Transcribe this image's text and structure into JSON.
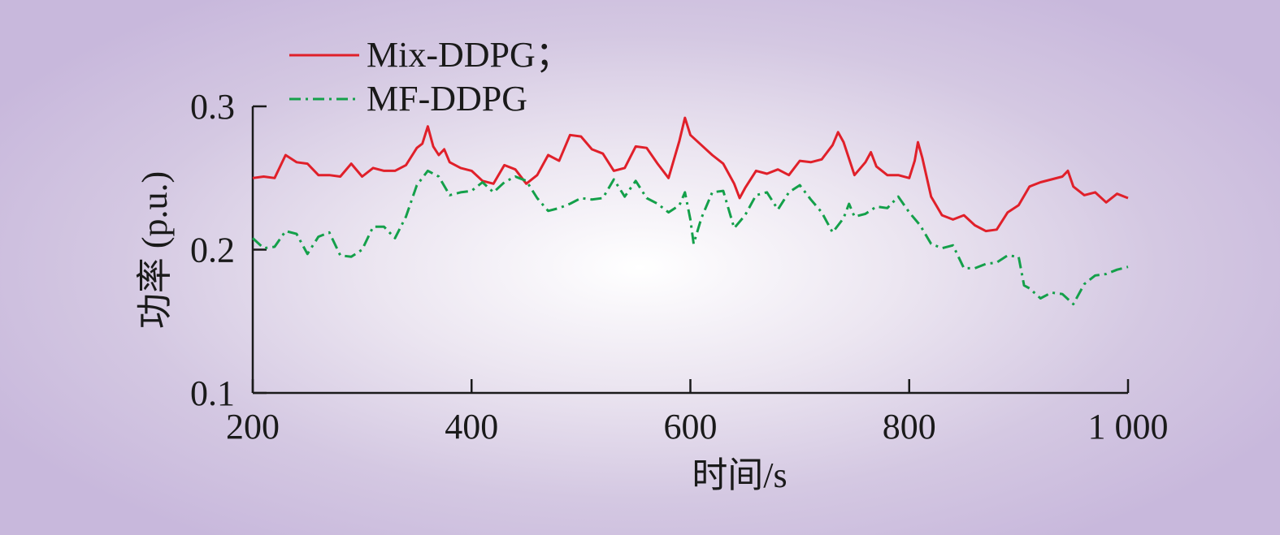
{
  "chart_data": {
    "type": "line",
    "xlabel": "时间/s",
    "ylabel": "功率 (p.u.)",
    "xlim": [
      200,
      1000
    ],
    "ylim": [
      0.1,
      0.3
    ],
    "x_ticks": [
      200,
      400,
      600,
      800,
      1000
    ],
    "x_tick_labels": [
      "200",
      "400",
      "600",
      "800",
      "1 000"
    ],
    "y_ticks": [
      0.1,
      0.2,
      0.3
    ],
    "y_tick_labels": [
      "0.1",
      "0.2",
      "0.3"
    ],
    "grid": false,
    "legend_position": "top-left",
    "series": [
      {
        "name": "Mix-DDPG；",
        "color": "#e0202a",
        "style": "solid",
        "points": [
          [
            200,
            0.25
          ],
          [
            210,
            0.251
          ],
          [
            220,
            0.25
          ],
          [
            230,
            0.266
          ],
          [
            240,
            0.261
          ],
          [
            250,
            0.26
          ],
          [
            260,
            0.252
          ],
          [
            270,
            0.252
          ],
          [
            280,
            0.251
          ],
          [
            290,
            0.26
          ],
          [
            300,
            0.251
          ],
          [
            310,
            0.257
          ],
          [
            320,
            0.255
          ],
          [
            330,
            0.255
          ],
          [
            340,
            0.259
          ],
          [
            350,
            0.271
          ],
          [
            355,
            0.274
          ],
          [
            360,
            0.286
          ],
          [
            365,
            0.272
          ],
          [
            370,
            0.266
          ],
          [
            375,
            0.27
          ],
          [
            380,
            0.261
          ],
          [
            390,
            0.257
          ],
          [
            400,
            0.255
          ],
          [
            410,
            0.248
          ],
          [
            420,
            0.246
          ],
          [
            430,
            0.259
          ],
          [
            440,
            0.256
          ],
          [
            450,
            0.246
          ],
          [
            460,
            0.252
          ],
          [
            470,
            0.266
          ],
          [
            480,
            0.262
          ],
          [
            490,
            0.28
          ],
          [
            500,
            0.279
          ],
          [
            510,
            0.27
          ],
          [
            520,
            0.267
          ],
          [
            530,
            0.255
          ],
          [
            540,
            0.257
          ],
          [
            550,
            0.272
          ],
          [
            560,
            0.271
          ],
          [
            570,
            0.26
          ],
          [
            580,
            0.25
          ],
          [
            590,
            0.276
          ],
          [
            595,
            0.292
          ],
          [
            600,
            0.28
          ],
          [
            610,
            0.273
          ],
          [
            620,
            0.266
          ],
          [
            630,
            0.26
          ],
          [
            640,
            0.246
          ],
          [
            645,
            0.236
          ],
          [
            650,
            0.243
          ],
          [
            660,
            0.255
          ],
          [
            670,
            0.253
          ],
          [
            680,
            0.256
          ],
          [
            690,
            0.252
          ],
          [
            700,
            0.262
          ],
          [
            710,
            0.261
          ],
          [
            720,
            0.263
          ],
          [
            730,
            0.273
          ],
          [
            735,
            0.282
          ],
          [
            740,
            0.275
          ],
          [
            750,
            0.252
          ],
          [
            760,
            0.261
          ],
          [
            765,
            0.268
          ],
          [
            770,
            0.258
          ],
          [
            780,
            0.252
          ],
          [
            790,
            0.252
          ],
          [
            800,
            0.25
          ],
          [
            805,
            0.262
          ],
          [
            808,
            0.275
          ],
          [
            812,
            0.264
          ],
          [
            820,
            0.237
          ],
          [
            830,
            0.224
          ],
          [
            840,
            0.221
          ],
          [
            850,
            0.224
          ],
          [
            860,
            0.217
          ],
          [
            870,
            0.213
          ],
          [
            880,
            0.214
          ],
          [
            890,
            0.226
          ],
          [
            900,
            0.231
          ],
          [
            910,
            0.244
          ],
          [
            920,
            0.247
          ],
          [
            930,
            0.249
          ],
          [
            940,
            0.251
          ],
          [
            945,
            0.255
          ],
          [
            950,
            0.244
          ],
          [
            960,
            0.238
          ],
          [
            970,
            0.24
          ],
          [
            980,
            0.233
          ],
          [
            990,
            0.239
          ],
          [
            1000,
            0.236
          ]
        ]
      },
      {
        "name": "MF-DDPG",
        "color": "#14a04a",
        "style": "dashdot",
        "points": [
          [
            200,
            0.208
          ],
          [
            210,
            0.201
          ],
          [
            220,
            0.202
          ],
          [
            230,
            0.213
          ],
          [
            240,
            0.211
          ],
          [
            250,
            0.197
          ],
          [
            260,
            0.209
          ],
          [
            270,
            0.212
          ],
          [
            280,
            0.196
          ],
          [
            290,
            0.195
          ],
          [
            300,
            0.2
          ],
          [
            310,
            0.216
          ],
          [
            320,
            0.216
          ],
          [
            330,
            0.208
          ],
          [
            340,
            0.223
          ],
          [
            350,
            0.245
          ],
          [
            360,
            0.255
          ],
          [
            370,
            0.251
          ],
          [
            380,
            0.238
          ],
          [
            390,
            0.24
          ],
          [
            400,
            0.241
          ],
          [
            410,
            0.247
          ],
          [
            420,
            0.24
          ],
          [
            430,
            0.247
          ],
          [
            440,
            0.251
          ],
          [
            450,
            0.248
          ],
          [
            460,
            0.236
          ],
          [
            470,
            0.227
          ],
          [
            480,
            0.229
          ],
          [
            490,
            0.232
          ],
          [
            500,
            0.236
          ],
          [
            510,
            0.235
          ],
          [
            520,
            0.236
          ],
          [
            530,
            0.249
          ],
          [
            540,
            0.237
          ],
          [
            550,
            0.248
          ],
          [
            560,
            0.236
          ],
          [
            570,
            0.232
          ],
          [
            580,
            0.226
          ],
          [
            590,
            0.231
          ],
          [
            595,
            0.24
          ],
          [
            600,
            0.221
          ],
          [
            603,
            0.204
          ],
          [
            610,
            0.222
          ],
          [
            620,
            0.24
          ],
          [
            630,
            0.241
          ],
          [
            640,
            0.215
          ],
          [
            650,
            0.224
          ],
          [
            660,
            0.238
          ],
          [
            670,
            0.24
          ],
          [
            680,
            0.228
          ],
          [
            690,
            0.24
          ],
          [
            700,
            0.245
          ],
          [
            710,
            0.235
          ],
          [
            720,
            0.226
          ],
          [
            730,
            0.212
          ],
          [
            740,
            0.222
          ],
          [
            745,
            0.232
          ],
          [
            750,
            0.223
          ],
          [
            760,
            0.225
          ],
          [
            770,
            0.23
          ],
          [
            780,
            0.229
          ],
          [
            790,
            0.237
          ],
          [
            800,
            0.226
          ],
          [
            810,
            0.217
          ],
          [
            820,
            0.204
          ],
          [
            830,
            0.201
          ],
          [
            840,
            0.203
          ],
          [
            850,
            0.187
          ],
          [
            860,
            0.187
          ],
          [
            870,
            0.19
          ],
          [
            880,
            0.191
          ],
          [
            890,
            0.196
          ],
          [
            900,
            0.195
          ],
          [
            905,
            0.175
          ],
          [
            910,
            0.173
          ],
          [
            920,
            0.166
          ],
          [
            930,
            0.17
          ],
          [
            940,
            0.169
          ],
          [
            950,
            0.162
          ],
          [
            960,
            0.176
          ],
          [
            970,
            0.182
          ],
          [
            980,
            0.183
          ],
          [
            990,
            0.186
          ],
          [
            1000,
            0.188
          ]
        ]
      }
    ]
  }
}
